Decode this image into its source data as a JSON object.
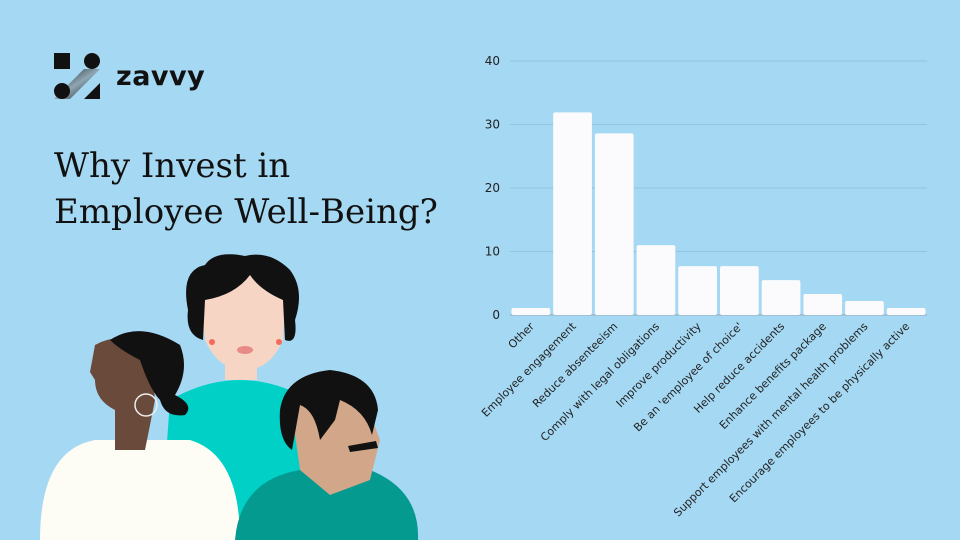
{
  "brand": {
    "name": "zavvy"
  },
  "heading": {
    "line1": "Why Invest in",
    "line2": "Employee Well-Being?"
  },
  "colors": {
    "background": "#a5d8f3",
    "bar": "#fbfbfd",
    "grid": "#8fc6e0"
  },
  "chart_data": {
    "type": "bar",
    "categories": [
      "Other",
      "Employee engagement",
      "Reduce absenteeism",
      "Comply with legal obligations",
      "Improve productivity",
      "Be an 'employee of choice'",
      "Help reduce accidents",
      "Enhance benefits package",
      "Support employees with mental health problems",
      "Encourage employees to be physically active"
    ],
    "values": [
      1.1,
      31.9,
      28.6,
      11,
      7.7,
      7.7,
      5.5,
      3.3,
      2.2,
      1.1
    ],
    "yticks": [
      "0",
      "10",
      "20",
      "30",
      "40"
    ],
    "ylim": [
      0,
      40
    ],
    "grid": true,
    "title": "",
    "xlabel": "",
    "ylabel": ""
  }
}
